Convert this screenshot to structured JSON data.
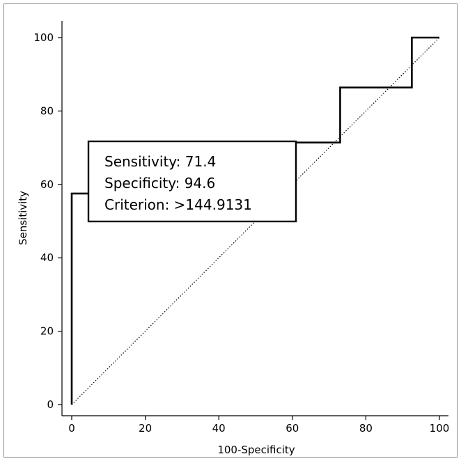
{
  "chart_data": {
    "type": "line",
    "title": "",
    "xlabel": "100-Specificity",
    "ylabel": "Sensitivity",
    "xlim": [
      0,
      100
    ],
    "ylim": [
      0,
      100
    ],
    "x_ticks": [
      0,
      20,
      40,
      60,
      80,
      100
    ],
    "y_ticks": [
      0,
      20,
      40,
      60,
      80,
      100
    ],
    "x_tick_labels": [
      "0",
      "20",
      "40",
      "60",
      "80",
      "100"
    ],
    "y_tick_labels": [
      "0",
      "20",
      "40",
      "60",
      "80",
      "100"
    ],
    "grid": false,
    "legend": "none",
    "series": [
      {
        "style": "solid-step",
        "color": "#000000",
        "points": [
          [
            0,
            0
          ],
          [
            0,
            57.5
          ],
          [
            5.4,
            57.5
          ],
          [
            5.4,
            71.4
          ],
          [
            73,
            71.4
          ],
          [
            73,
            86.4
          ],
          [
            92.5,
            86.4
          ],
          [
            92.5,
            100
          ],
          [
            100,
            100
          ]
        ]
      },
      {
        "style": "dotted-reference",
        "color": "#000000",
        "points": [
          [
            0,
            0
          ],
          [
            100,
            100
          ]
        ]
      }
    ],
    "annotation": {
      "lines": [
        "Sensitivity: 71.4",
        "Specificity: 94.6",
        "Criterion: >144.9131"
      ]
    }
  }
}
